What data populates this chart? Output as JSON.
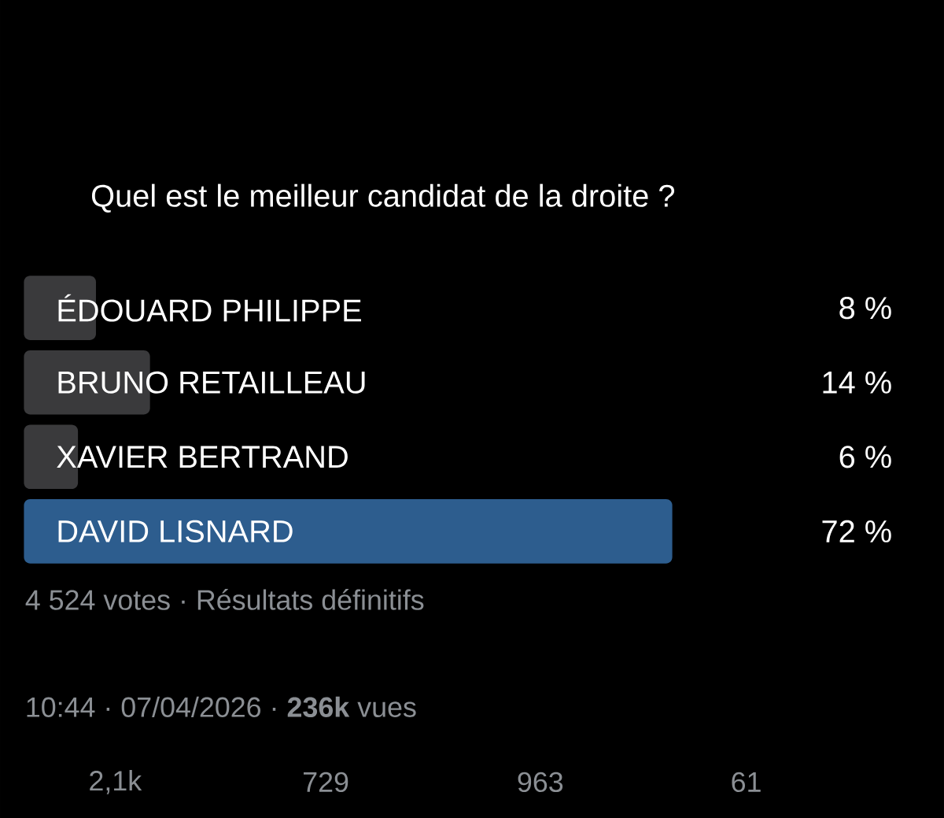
{
  "chart_data": {
    "type": "bar",
    "orientation": "horizontal",
    "title": "Quel est le meilleur candidat de la droite ?",
    "categories": [
      "ÉDOUARD PHILIPPE",
      "BRUNO RETAILLEAU",
      "XAVIER BERTRAND",
      "DAVID LISNARD"
    ],
    "values": [
      8,
      14,
      6,
      72
    ],
    "value_labels": [
      "8 %",
      "14 %",
      "6 %",
      "72 %"
    ],
    "colors": [
      "#3a3a3c",
      "#3a3a3c",
      "#3a3a3c",
      "#2d5d8e"
    ],
    "annotations": [
      "4 524 votes · Résultats définitifs",
      "10:44 · 07/04/2026 · **236k** vues",
      "2,1k",
      "729",
      "963",
      "61"
    ]
  }
}
